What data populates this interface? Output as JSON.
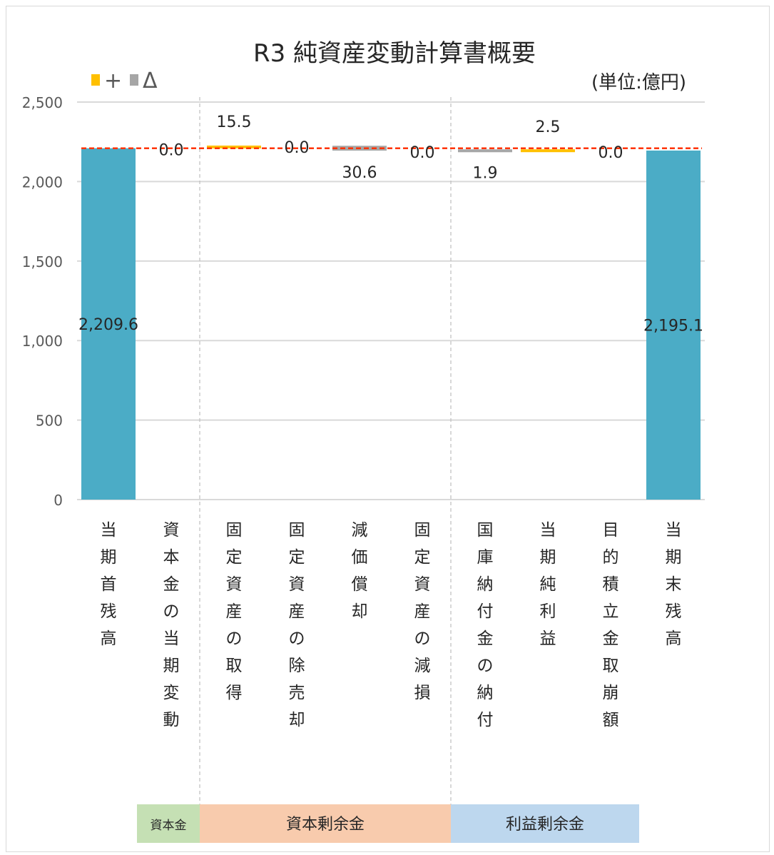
{
  "chart_data": {
    "type": "bar",
    "title": "R3 純資産変動計算書概要",
    "unit_label": "(単位:億円)",
    "legend": [
      {
        "symbol": "+",
        "color": "#FFC000"
      },
      {
        "symbol": "Δ",
        "color": "#A6A6A6"
      }
    ],
    "y_ticks": [
      "2,500",
      "2,000",
      "1,500",
      "1,000",
      "500",
      "0"
    ],
    "ylim": [
      0,
      2500
    ],
    "grid": true,
    "categories": [
      "当期首残高",
      "資本金の当期変動",
      "固定資産の取得",
      "固定資産の除売却",
      "減価償却",
      "固定資産の減損",
      "国庫納付金の納付",
      "当期純利益",
      "目的積立金取崩額",
      "当期末残高"
    ],
    "bars": [
      {
        "kind": "total",
        "base": 0,
        "value": 2209.6,
        "label": "2,209.6"
      },
      {
        "kind": "increase",
        "base": 2209.6,
        "value": 0.0,
        "label": "0.0"
      },
      {
        "kind": "increase",
        "base": 2209.6,
        "value": 15.5,
        "label": "15.5"
      },
      {
        "kind": "decrease",
        "base": 2225.1,
        "value": 0.0,
        "label": "0.0"
      },
      {
        "kind": "decrease",
        "base": 2225.1,
        "value": 30.6,
        "label": "30.6"
      },
      {
        "kind": "decrease",
        "base": 2194.5,
        "value": 0.0,
        "label": "0.0"
      },
      {
        "kind": "decrease",
        "base": 2194.5,
        "value": 1.9,
        "label": "1.9"
      },
      {
        "kind": "increase",
        "base": 2192.6,
        "value": 2.5,
        "label": "2.5"
      },
      {
        "kind": "increase",
        "base": 2195.1,
        "value": 0.0,
        "label": "0.0"
      },
      {
        "kind": "total",
        "base": 0,
        "value": 2195.1,
        "label": "2,195.1"
      }
    ],
    "reference_line": {
      "value": 2209.6,
      "color": "#FF3300"
    },
    "groups": [
      {
        "label": "資本金",
        "from": 1,
        "to": 1,
        "color": "#C5E0B4",
        "small": true
      },
      {
        "label": "資本剰余金",
        "from": 2,
        "to": 5,
        "color": "#F8CBAD",
        "small": false
      },
      {
        "label": "利益剰余金",
        "from": 6,
        "to": 8,
        "color": "#BDD7EE",
        "small": false
      }
    ],
    "colors": {
      "total": "#4BACC6",
      "increase": "#FFC000",
      "decrease": "#A6A6A6",
      "grid": "#D9D9D9",
      "separator": "#BFBFBF"
    }
  }
}
